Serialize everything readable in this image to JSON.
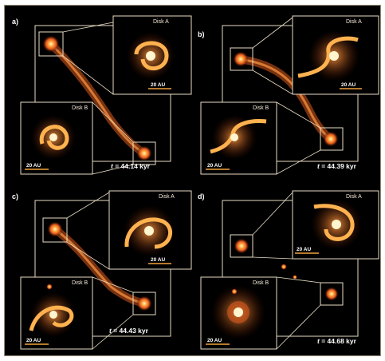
{
  "panels": [
    {
      "label": "a)",
      "disk_a": "Disk A",
      "disk_b": "Disk B",
      "scale_a": "20 AU",
      "scale_b": "20 AU",
      "time_prefix": "t",
      "time_value": " = 44.14 kyr"
    },
    {
      "label": "b)",
      "disk_a": "Disk A",
      "disk_b": "Disk B",
      "scale_a": "20 AU",
      "scale_b": "20 AU",
      "time_prefix": "t",
      "time_value": " = 44.39 kyr"
    },
    {
      "label": "c)",
      "disk_a": "Disk A",
      "disk_b": "Disk B",
      "scale_a": "20 AU",
      "scale_b": "20 AU",
      "time_prefix": "t",
      "time_value": " = 44.43 kyr"
    },
    {
      "label": "d)",
      "disk_a": "Disk A",
      "disk_b": "Disk B",
      "scale_a": "20 AU",
      "scale_b": "20 AU",
      "time_prefix": "t",
      "time_value": " = 44.68 kyr"
    }
  ],
  "colors": {
    "background": "#000000",
    "frame": "#e8dcc4",
    "scalebar": "#f2a23a",
    "glow": "#ff7a1a"
  }
}
